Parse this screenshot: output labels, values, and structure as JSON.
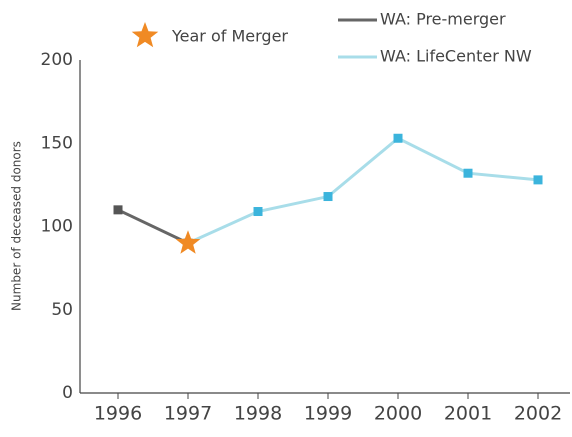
{
  "chart_data": {
    "type": "line",
    "y_label": "Number of deceased donors",
    "x": [
      1996,
      1997,
      1998,
      1999,
      2000,
      2001,
      2002
    ],
    "xlim": [
      1995.457,
      2002.457
    ],
    "xticks": [
      1996,
      1997,
      1998,
      1999,
      2000,
      2001,
      2002
    ],
    "ylim": [
      0,
      200
    ],
    "yticks": [
      0,
      50,
      100,
      150,
      200
    ],
    "series": [
      {
        "name": "WA: Pre-merger",
        "color": "#666666",
        "marker_color": "#555555",
        "marker": "square",
        "values": [
          110,
          90,
          null,
          null,
          null,
          null,
          null
        ]
      },
      {
        "name": "WA: LifeCenter NW",
        "color": "#a8dde9",
        "marker_color": "#3bb4dc",
        "marker": "square",
        "values": [
          null,
          90,
          109,
          118,
          153,
          132,
          128
        ]
      },
      {
        "name": "Year of Merger",
        "color": "#f08a24",
        "marker": "star",
        "values": [
          null,
          90,
          null,
          null,
          null,
          null,
          null
        ]
      }
    ]
  }
}
